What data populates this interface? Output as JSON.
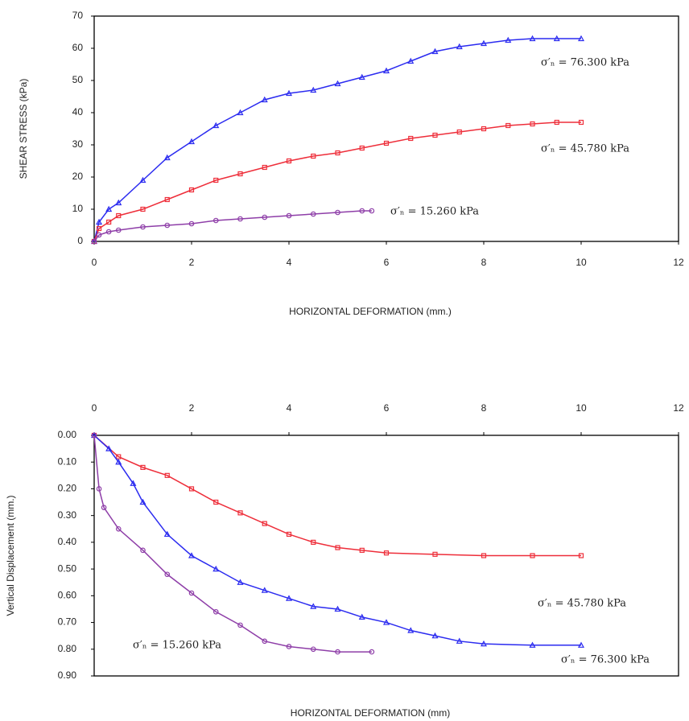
{
  "chart_data": [
    {
      "type": "line",
      "x_label": "HORIZONTAL DEFORMATION (mm.)",
      "y_label": "SHEAR STRESS (kPa)",
      "xlim": [
        0,
        12
      ],
      "xticks": [
        0,
        2,
        4,
        6,
        8,
        10,
        12
      ],
      "ylim": [
        0,
        70
      ],
      "yticks": [
        0,
        10,
        20,
        30,
        40,
        50,
        60,
        70
      ],
      "x_axis_side": "bottom",
      "annotations": [
        "σ′ₙ = 76.300 kPa",
        "σ′ₙ = 45.780 kPa",
        "σ′ₙ = 15.260 kPa"
      ],
      "series": [
        {
          "color": "#2b2bf0",
          "marker": "triangle",
          "x": [
            0,
            0.1,
            0.3,
            0.5,
            1,
            1.5,
            2,
            2.5,
            3,
            3.5,
            4,
            4.5,
            5,
            5.5,
            6,
            6.5,
            7,
            7.5,
            8,
            8.5,
            9,
            9.5,
            10
          ],
          "values": [
            0,
            6,
            10,
            12,
            19,
            26,
            31,
            36,
            40,
            44,
            46,
            47,
            49,
            51,
            53,
            56,
            59,
            60.5,
            61.5,
            62.5,
            63,
            63,
            63
          ]
        },
        {
          "color": "#ee2e3a",
          "marker": "square",
          "x": [
            0,
            0.1,
            0.3,
            0.5,
            1,
            1.5,
            2,
            2.5,
            3,
            3.5,
            4,
            4.5,
            5,
            5.5,
            6,
            6.5,
            7,
            7.5,
            8,
            8.5,
            9,
            9.5,
            10
          ],
          "values": [
            0,
            4,
            6,
            8,
            10,
            13,
            16,
            19,
            21,
            23,
            25,
            26.5,
            27.5,
            29,
            30.5,
            32,
            33,
            34,
            35,
            36,
            36.5,
            37,
            37
          ]
        },
        {
          "color": "#8e3ea8",
          "marker": "circle",
          "x": [
            0,
            0.1,
            0.3,
            0.5,
            1,
            1.5,
            2,
            2.5,
            3,
            3.5,
            4,
            4.5,
            5,
            5.5,
            5.7
          ],
          "values": [
            0,
            2,
            3,
            3.5,
            4.5,
            5,
            5.5,
            6.5,
            7,
            7.5,
            8,
            8.5,
            9,
            9.5,
            9.5
          ]
        }
      ]
    },
    {
      "type": "line",
      "x_label": "HORIZONTAL DEFORMATION (mm)",
      "y_label": "Vertical Displacement (mm.)",
      "xlim": [
        0,
        12
      ],
      "xticks": [
        0,
        2,
        4,
        6,
        8,
        10,
        12
      ],
      "ylim": [
        0.9,
        0
      ],
      "yticks": [
        {
          "value": 0,
          "label": "0.00"
        },
        {
          "value": 0.1,
          "label": "0.10"
        },
        {
          "value": 0.2,
          "label": "0.20"
        },
        {
          "value": 0.3,
          "label": "0.30"
        },
        {
          "value": 0.4,
          "label": "0.40"
        },
        {
          "value": 0.5,
          "label": "0.50"
        },
        {
          "value": 0.6,
          "label": "0.60"
        },
        {
          "value": 0.7,
          "label": "0.70"
        },
        {
          "value": 0.8,
          "label": "0.80"
        },
        {
          "value": 0.9,
          "label": "0.90"
        }
      ],
      "x_axis_side": "top",
      "annotations": [
        "σ′ₙ = 45.780 kPa",
        "σ′ₙ = 15.260 kPa",
        "σ′ₙ = 76.300 kPa"
      ],
      "series": [
        {
          "color": "#ee2e3a",
          "marker": "square",
          "x": [
            0,
            0.5,
            1,
            1.5,
            2,
            2.5,
            3,
            3.5,
            4,
            4.5,
            5,
            5.5,
            6,
            7,
            8,
            9,
            10
          ],
          "values": [
            0,
            0.08,
            0.12,
            0.15,
            0.2,
            0.25,
            0.29,
            0.33,
            0.37,
            0.4,
            0.42,
            0.43,
            0.44,
            0.445,
            0.45,
            0.45,
            0.45
          ]
        },
        {
          "color": "#2b2bf0",
          "marker": "triangle",
          "x": [
            0,
            0.3,
            0.5,
            0.8,
            1,
            1.5,
            2,
            2.5,
            3,
            3.5,
            4,
            4.5,
            5,
            5.5,
            6,
            6.5,
            7,
            7.5,
            8,
            9,
            10
          ],
          "values": [
            0,
            0.05,
            0.1,
            0.18,
            0.25,
            0.37,
            0.45,
            0.5,
            0.55,
            0.58,
            0.61,
            0.64,
            0.65,
            0.68,
            0.7,
            0.73,
            0.75,
            0.77,
            0.78,
            0.785,
            0.785
          ]
        },
        {
          "color": "#8e3ea8",
          "marker": "circle",
          "x": [
            0,
            0.1,
            0.2,
            0.5,
            1,
            1.5,
            2,
            2.5,
            3,
            3.5,
            4,
            4.5,
            5,
            5.7
          ],
          "values": [
            0,
            0.2,
            0.27,
            0.35,
            0.43,
            0.52,
            0.59,
            0.66,
            0.71,
            0.77,
            0.79,
            0.8,
            0.81,
            0.81
          ]
        }
      ]
    }
  ]
}
